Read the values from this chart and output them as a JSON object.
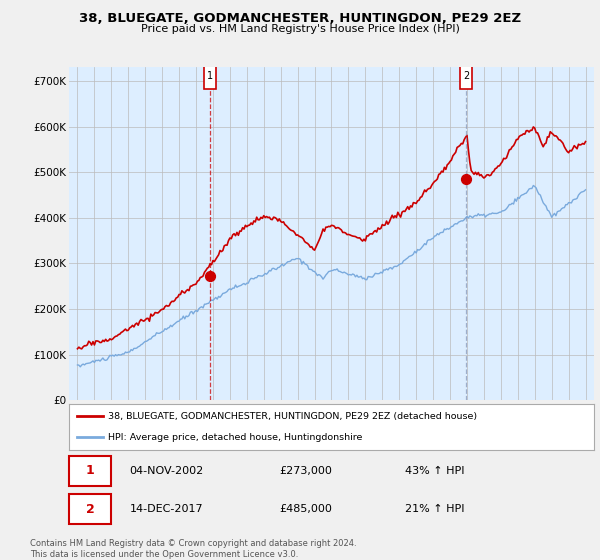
{
  "title": "38, BLUEGATE, GODMANCHESTER, HUNTINGDON, PE29 2EZ",
  "subtitle": "Price paid vs. HM Land Registry's House Price Index (HPI)",
  "ylabel_ticks": [
    "£0",
    "£100K",
    "£200K",
    "£300K",
    "£400K",
    "£500K",
    "£600K",
    "£700K"
  ],
  "ytick_values": [
    0,
    100000,
    200000,
    300000,
    400000,
    500000,
    600000,
    700000
  ],
  "ylim": [
    0,
    730000
  ],
  "sale1": {
    "date": "04-NOV-2002",
    "price": 273000,
    "pct": "43%",
    "year": 2002.84
  },
  "sale2": {
    "date": "14-DEC-2017",
    "price": 485000,
    "pct": "21%",
    "year": 2017.95
  },
  "legend_line1": "38, BLUEGATE, GODMANCHESTER, HUNTINGDON, PE29 2EZ (detached house)",
  "legend_line2": "HPI: Average price, detached house, Huntingdonshire",
  "footnote": "Contains HM Land Registry data © Crown copyright and database right 2024.\nThis data is licensed under the Open Government Licence v3.0.",
  "line_color_red": "#cc0000",
  "line_color_blue": "#7aaadd",
  "background_color": "#f0f0f0",
  "plot_bg": "#ddeeff",
  "grid_color": "#bbbbbb",
  "sale1_vline_color": "#cc0000",
  "sale2_vline_color": "#8899bb"
}
